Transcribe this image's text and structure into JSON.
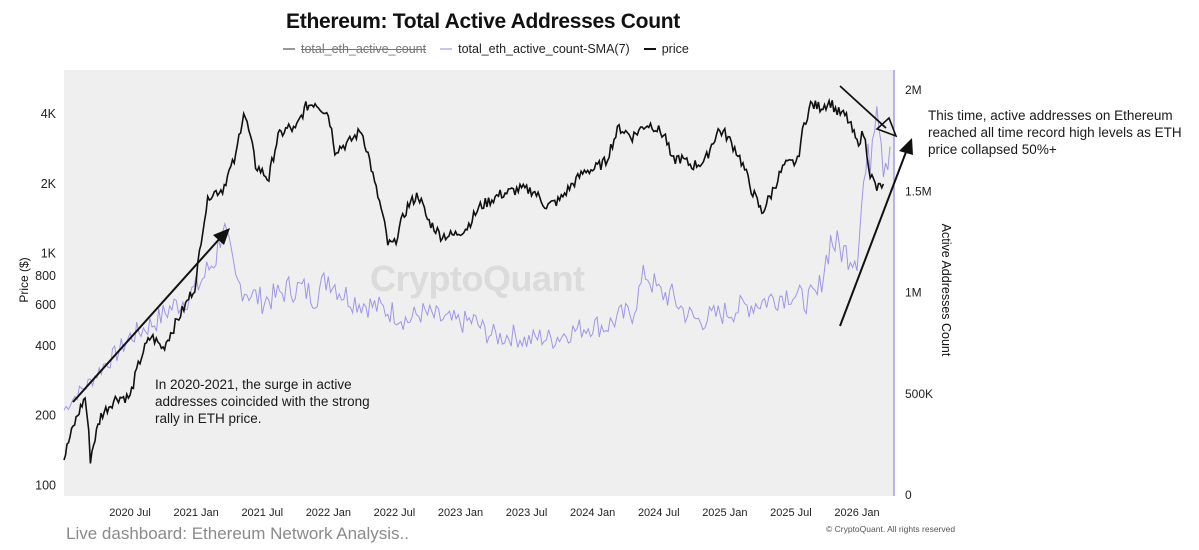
{
  "chart_data": {
    "type": "line",
    "title": "Ethereum: Total Active Addresses Count",
    "legend": [
      {
        "name": "total_eth_active_count",
        "color": "#9a9a9a",
        "hidden": true
      },
      {
        "name": "total_eth_active_count-SMA(7)",
        "color": "#b9b5e8",
        "hidden": false
      },
      {
        "name": "price",
        "color": "#111111",
        "hidden": false
      }
    ],
    "ylabel_left": "Price ($)",
    "ylabel_right": "Active Addresses Count",
    "y_left_scale": "log",
    "y_left_range": [
      90,
      6200
    ],
    "y_left_ticks": [
      {
        "value": 100,
        "label": "100"
      },
      {
        "value": 200,
        "label": "200"
      },
      {
        "value": 400,
        "label": "400"
      },
      {
        "value": 600,
        "label": "600"
      },
      {
        "value": 800,
        "label": "800"
      },
      {
        "value": 1000,
        "label": "1K"
      },
      {
        "value": 2000,
        "label": "2K"
      },
      {
        "value": 4000,
        "label": "4K"
      }
    ],
    "y_right_range": [
      0,
      2000000
    ],
    "y_right_ticks": [
      {
        "value": 0,
        "label": "0"
      },
      {
        "value": 500000,
        "label": "500K"
      },
      {
        "value": 1000000,
        "label": "1M"
      },
      {
        "value": 1500000,
        "label": "1.5M"
      },
      {
        "value": 2000000,
        "label": "2M"
      }
    ],
    "x_range": [
      2020.0,
      2026.28
    ],
    "x_ticks": [
      {
        "value": 2020.5,
        "label": "2020 Jul"
      },
      {
        "value": 2021.0,
        "label": "2021 Jan"
      },
      {
        "value": 2021.5,
        "label": "2021 Jul"
      },
      {
        "value": 2022.0,
        "label": "2022 Jan"
      },
      {
        "value": 2022.5,
        "label": "2022 Jul"
      },
      {
        "value": 2023.0,
        "label": "2023 Jan"
      },
      {
        "value": 2023.5,
        "label": "2023 Jul"
      },
      {
        "value": 2024.0,
        "label": "2024 Jan"
      },
      {
        "value": 2024.5,
        "label": "2024 Jul"
      },
      {
        "value": 2025.0,
        "label": "2025 Jan"
      },
      {
        "value": 2025.5,
        "label": "2025 Jul"
      },
      {
        "value": 2026.0,
        "label": "2026 Jan"
      }
    ],
    "series": [
      {
        "name": "price",
        "axis": "left",
        "color": "#111111",
        "x": [
          2020.0,
          2020.08,
          2020.16,
          2020.2,
          2020.28,
          2020.4,
          2020.5,
          2020.6,
          2020.66,
          2020.75,
          2020.83,
          2020.92,
          2021.0,
          2021.05,
          2021.1,
          2021.2,
          2021.3,
          2021.36,
          2021.45,
          2021.55,
          2021.62,
          2021.7,
          2021.75,
          2021.83,
          2021.9,
          2022.0,
          2022.05,
          2022.15,
          2022.25,
          2022.35,
          2022.45,
          2022.5,
          2022.6,
          2022.68,
          2022.75,
          2022.85,
          2022.95,
          2023.05,
          2023.15,
          2023.3,
          2023.45,
          2023.55,
          2023.65,
          2023.75,
          2023.85,
          2023.95,
          2024.0,
          2024.1,
          2024.2,
          2024.3,
          2024.4,
          2024.45,
          2024.55,
          2024.6,
          2024.65,
          2024.75,
          2024.85,
          2024.95,
          2025.0,
          2025.1,
          2025.2,
          2025.28,
          2025.35,
          2025.45,
          2025.55,
          2025.6,
          2025.65,
          2025.72,
          2025.8,
          2025.85,
          2025.92,
          2026.0,
          2026.05,
          2026.1,
          2026.15,
          2026.2
        ],
        "values": [
          130,
          185,
          240,
          130,
          200,
          240,
          240,
          380,
          440,
          390,
          480,
          600,
          740,
          1300,
          1800,
          1900,
          2600,
          4100,
          2400,
          2100,
          3200,
          3500,
          3400,
          4300,
          4500,
          4000,
          2800,
          3000,
          3400,
          2000,
          1100,
          1100,
          1600,
          1800,
          1400,
          1200,
          1200,
          1300,
          1600,
          1800,
          1900,
          1870,
          1600,
          1700,
          2000,
          2300,
          2300,
          2500,
          3500,
          3200,
          3600,
          3600,
          3200,
          2500,
          2600,
          2400,
          2500,
          3400,
          3300,
          2700,
          1900,
          1500,
          1800,
          2400,
          2500,
          3600,
          4400,
          4300,
          4500,
          4100,
          3900,
          3000,
          3300,
          2200,
          1900,
          2000
        ]
      },
      {
        "name": "total_eth_active_count-SMA(7)",
        "axis": "right",
        "color": "#8f86e6",
        "x": [
          2020.0,
          2020.1,
          2020.2,
          2020.3,
          2020.4,
          2020.5,
          2020.6,
          2020.7,
          2020.8,
          2020.9,
          2021.0,
          2021.08,
          2021.15,
          2021.2,
          2021.3,
          2021.4,
          2021.5,
          2021.6,
          2021.7,
          2021.8,
          2021.9,
          2022.0,
          2022.1,
          2022.2,
          2022.3,
          2022.4,
          2022.5,
          2022.6,
          2022.7,
          2022.8,
          2022.9,
          2023.0,
          2023.1,
          2023.2,
          2023.3,
          2023.4,
          2023.5,
          2023.6,
          2023.7,
          2023.8,
          2023.9,
          2024.0,
          2024.1,
          2024.2,
          2024.3,
          2024.4,
          2024.5,
          2024.6,
          2024.7,
          2024.8,
          2024.9,
          2025.0,
          2025.1,
          2025.2,
          2025.3,
          2025.4,
          2025.5,
          2025.6,
          2025.7,
          2025.8,
          2025.9,
          2026.0,
          2026.05,
          2026.1,
          2026.15,
          2026.2,
          2026.25
        ],
        "values": [
          420000,
          500000,
          560000,
          640000,
          700000,
          780000,
          820000,
          860000,
          920000,
          960000,
          1020000,
          1100000,
          1180000,
          1340000,
          1050000,
          1000000,
          960000,
          980000,
          1020000,
          1020000,
          980000,
          1080000,
          1000000,
          960000,
          940000,
          920000,
          900000,
          860000,
          900000,
          880000,
          860000,
          850000,
          860000,
          800000,
          780000,
          790000,
          760000,
          780000,
          770000,
          800000,
          820000,
          840000,
          830000,
          880000,
          900000,
          1100000,
          1000000,
          980000,
          900000,
          860000,
          880000,
          900000,
          920000,
          940000,
          960000,
          980000,
          1000000,
          960000,
          980000,
          1260000,
          1200000,
          1180000,
          1540000,
          1680000,
          2020000,
          1660000,
          1720000
        ]
      }
    ],
    "annotations": [
      {
        "id": "anno-2020",
        "text": "In 2020-2021, the surge in active addresses coincided with the strong rally in ETH price."
      },
      {
        "id": "anno-2026",
        "text": "This time, active addresses on Ethereum reached all time record high levels as ETH price collapsed 50%+"
      }
    ]
  },
  "watermark": "CryptoQuant",
  "footer": {
    "link_text": "Live dashboard: Ethereum Network Analysis..",
    "copyright": "© CryptoQuant. All rights reserved"
  }
}
